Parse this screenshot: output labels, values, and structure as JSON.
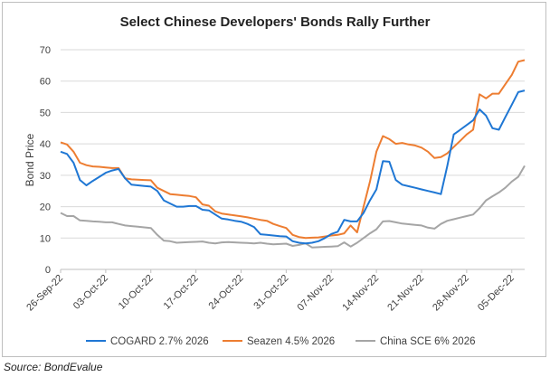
{
  "chart_data": {
    "type": "line",
    "title": "Select Chinese Developers' Bonds Rally Further",
    "xlabel": "",
    "ylabel": "Bond Price",
    "ylim": [
      0,
      70
    ],
    "yticks": [
      0,
      10,
      20,
      30,
      40,
      50,
      60,
      70
    ],
    "xticks": [
      "26-Sep-22",
      "03-Oct-22",
      "10-Oct-22",
      "17-Oct-22",
      "24-Oct-22",
      "31-Oct-22",
      "07-Nov-22",
      "14-Nov-22",
      "21-Nov-22",
      "28-Nov-22",
      "05-Dec-22"
    ],
    "x": [
      0,
      1,
      2,
      3,
      4,
      5,
      6,
      7,
      8,
      9,
      10,
      11,
      12,
      13,
      14,
      15,
      16,
      17,
      18,
      19,
      20,
      21,
      22,
      23,
      24,
      25,
      26,
      27,
      28,
      29,
      30,
      31,
      32,
      33,
      34,
      35,
      36,
      37,
      38,
      39,
      40,
      41,
      42,
      43,
      44,
      45,
      46,
      47,
      48,
      49,
      50,
      51,
      52,
      53,
      54,
      55,
      56,
      57,
      58,
      59,
      60,
      61,
      62,
      63,
      64,
      65,
      66,
      67,
      68,
      69,
      70,
      71,
      72
    ],
    "series": [
      {
        "name": "COGARD 2.7% 2026",
        "color": "#1f77d4",
        "values": [
          37.5,
          36.8,
          34.0,
          28.5,
          26.8,
          28.2,
          29.5,
          30.8,
          31.5,
          32.0,
          29.0,
          27.0,
          26.8,
          26.6,
          26.4,
          25.0,
          22.0,
          21.0,
          20.0,
          20.0,
          20.2,
          20.2,
          19.0,
          18.8,
          17.5,
          16.2,
          15.9,
          15.5,
          15.2,
          14.5,
          13.5,
          11.2,
          11.0,
          10.8,
          10.6,
          10.5,
          9.0,
          8.5,
          8.3,
          8.5,
          9.0,
          10.0,
          11.3,
          12.0,
          15.8,
          15.3,
          15.3,
          18.0,
          22.0,
          25.5,
          34.5,
          34.3,
          28.5,
          27.0,
          26.5,
          26.0,
          25.5,
          25.0,
          24.5,
          24.0,
          33.0,
          43.0,
          44.5,
          46.0,
          47.5,
          51.0,
          49.0,
          45.0,
          44.5,
          48.5,
          52.5,
          56.5,
          57.0
        ]
      },
      {
        "name": "Seazen 4.5% 2026",
        "color": "#ed7d31",
        "values": [
          40.5,
          39.8,
          37.5,
          34.0,
          33.2,
          32.8,
          32.7,
          32.5,
          32.3,
          32.3,
          29.0,
          28.7,
          28.6,
          28.5,
          28.4,
          26.0,
          25.0,
          24.0,
          23.8,
          23.6,
          23.4,
          23.0,
          20.7,
          20.3,
          18.5,
          17.8,
          17.5,
          17.2,
          16.9,
          16.6,
          16.2,
          15.8,
          15.5,
          14.5,
          13.8,
          13.2,
          11.0,
          10.3,
          10.0,
          10.1,
          10.2,
          10.5,
          10.8,
          11.0,
          11.5,
          14.0,
          11.8,
          20.0,
          28.0,
          37.5,
          42.5,
          41.5,
          40.0,
          40.3,
          39.8,
          39.5,
          38.8,
          37.5,
          35.5,
          35.8,
          37.0,
          39.0,
          41.0,
          43.0,
          44.5,
          55.8,
          54.5,
          56.0,
          56.0,
          59.0,
          62.0,
          66.2,
          66.7
        ]
      },
      {
        "name": "China SCE 6% 2026",
        "color": "#a5a5a5",
        "values": [
          18.0,
          17.0,
          17.0,
          15.6,
          15.5,
          15.3,
          15.2,
          15.0,
          15.0,
          14.5,
          14.0,
          13.8,
          13.6,
          13.4,
          13.2,
          11.0,
          9.2,
          9.0,
          8.5,
          8.6,
          8.7,
          8.8,
          8.9,
          8.5,
          8.3,
          8.6,
          8.7,
          8.6,
          8.5,
          8.4,
          8.3,
          8.5,
          8.2,
          8.0,
          8.1,
          8.2,
          7.5,
          7.8,
          8.3,
          7.0,
          7.1,
          7.2,
          7.3,
          7.4,
          8.6,
          7.3,
          8.5,
          10.0,
          11.5,
          12.8,
          15.3,
          15.4,
          15.0,
          14.6,
          14.4,
          14.2,
          14.0,
          13.3,
          13.0,
          14.5,
          15.5,
          16.0,
          16.5,
          17.0,
          17.5,
          19.5,
          22.0,
          23.3,
          24.5,
          26.0,
          28.0,
          29.5,
          33.0
        ]
      }
    ],
    "legend": "bottom",
    "grid": true
  },
  "source": "Source: BondEvalue"
}
